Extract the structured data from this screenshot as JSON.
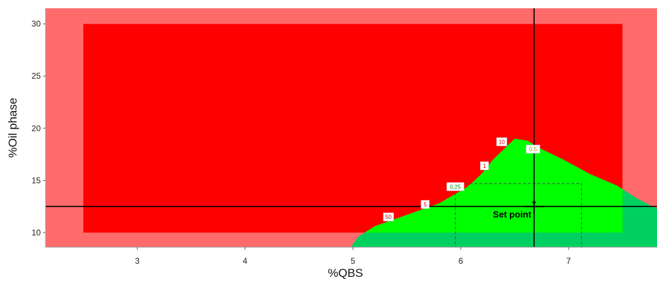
{
  "chart_data": {
    "type": "heatmap",
    "title": "",
    "xlabel": "%QBS",
    "ylabel": "%Oil phase",
    "xlim": [
      2.15,
      7.82
    ],
    "ylim": [
      8.6,
      31.5
    ],
    "x_ticks": [
      "3",
      "4",
      "5",
      "6",
      "7"
    ],
    "y_ticks": [
      "10",
      "15",
      "20",
      "25",
      "30"
    ],
    "regions": {
      "outer_background_color": "#FF6B6B",
      "design_space": {
        "x": [
          2.5,
          7.5
        ],
        "y": [
          10,
          30
        ],
        "fail_color": "#FF0000"
      },
      "feasible_color": "#00FF00",
      "feasible_outside_color": "#00D060",
      "feasible_boundary": [
        [
          4.98,
          8.6
        ],
        [
          5.05,
          9.6
        ],
        [
          5.2,
          10.6
        ],
        [
          5.5,
          11.7
        ],
        [
          5.8,
          12.8
        ],
        [
          5.95,
          13.7
        ],
        [
          6.05,
          14.3
        ],
        [
          6.12,
          14.9
        ],
        [
          6.2,
          15.7
        ],
        [
          6.3,
          17.0
        ],
        [
          6.5,
          19.0
        ],
        [
          6.62,
          18.8
        ],
        [
          6.75,
          18.0
        ],
        [
          6.95,
          17.0
        ],
        [
          7.2,
          15.6
        ],
        [
          7.45,
          14.5
        ],
        [
          7.63,
          13.3
        ],
        [
          7.82,
          12.3
        ],
        [
          7.82,
          8.6
        ]
      ]
    },
    "contour_labels": [
      {
        "text": "10",
        "x": 6.38,
        "y": 18.7,
        "color": "#D40000"
      },
      {
        "text": "0.5",
        "x": 6.67,
        "y": 18.0,
        "color": "#A0A000"
      },
      {
        "text": "1",
        "x": 6.22,
        "y": 16.4,
        "color": "#D40000"
      },
      {
        "text": "0.25",
        "x": 5.95,
        "y": 14.4,
        "color": "#008800"
      },
      {
        "text": "5",
        "x": 5.67,
        "y": 12.7,
        "color": "#D40000"
      },
      {
        "text": "50",
        "x": 5.33,
        "y": 11.5,
        "color": "#D40000"
      }
    ],
    "set_point": {
      "label": "Set point",
      "x": 6.68,
      "y": 12.5
    },
    "crosshair": {
      "x": 6.68,
      "y": 12.5
    },
    "dashed_box": {
      "x": [
        5.95,
        7.12
      ],
      "y": [
        8.6,
        14.7
      ]
    }
  }
}
